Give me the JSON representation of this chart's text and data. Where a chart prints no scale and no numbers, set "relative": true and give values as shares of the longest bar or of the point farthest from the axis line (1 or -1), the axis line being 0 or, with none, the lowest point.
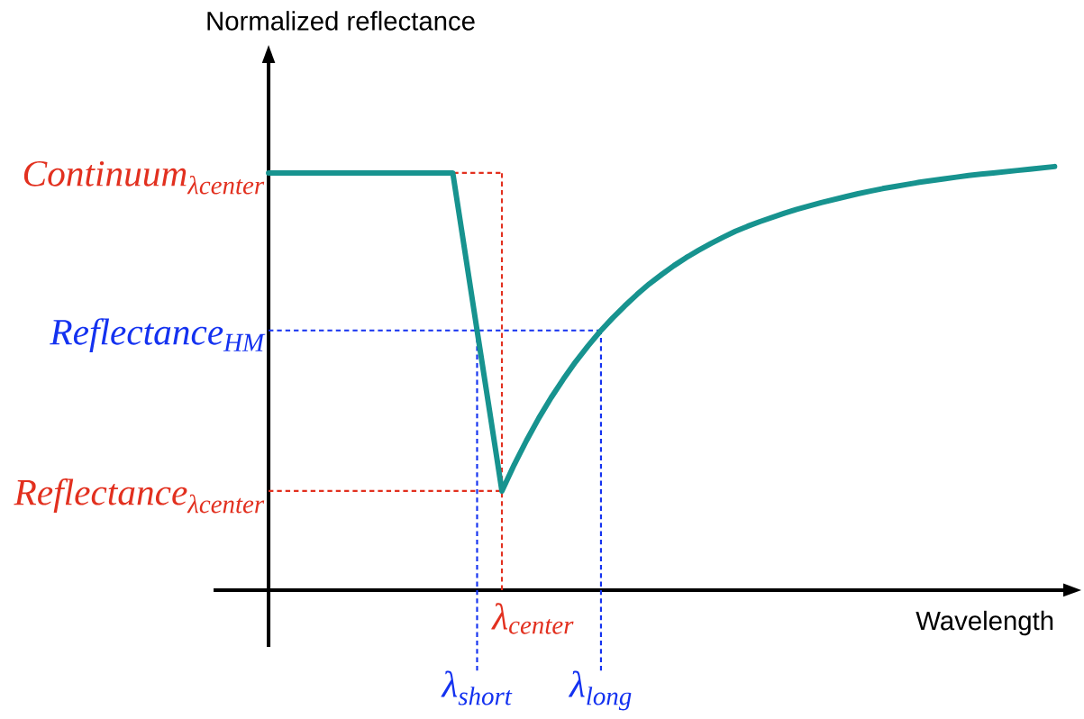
{
  "chart_data": {
    "type": "line",
    "relative": true,
    "xlabel": "Wavelength",
    "categories": [
      null,
      null,
      null,
      null,
      null,
      null,
      null,
      null,
      null,
      null,
      null,
      null,
      null,
      null,
      null,
      null,
      null,
      null,
      null,
      null,
      null,
      null,
      null,
      null,
      null,
      null,
      null,
      null,
      null,
      null,
      null,
      null,
      null,
      null,
      null,
      null,
      null,
      null,
      null,
      null,
      null,
      null,
      null,
      null,
      null,
      null,
      null,
      null,
      null,
      null,
      null,
      null,
      null,
      null,
      null,
      null,
      null,
      null,
      null,
      null,
      null,
      null,
      null,
      null,
      null
    ],
    "series": [
      {
        "color": "#17938f",
        "values": [
          0.985,
          0.985,
          0.985,
          0.985,
          0.985,
          0.985,
          0.985,
          0.985,
          0.985,
          0.985,
          0.985,
          0.985,
          0.985,
          0.985,
          0.985,
          0.985,
          0.797,
          0.609,
          0.422,
          0.234,
          0.296,
          0.353,
          0.406,
          0.454,
          0.498,
          0.539,
          0.576,
          0.611,
          0.642,
          0.671,
          0.698,
          0.723,
          0.745,
          0.766,
          0.785,
          0.802,
          0.818,
          0.833,
          0.847,
          0.859,
          0.87,
          0.88,
          0.89,
          0.899,
          0.907,
          0.915,
          0.922,
          0.929,
          0.936,
          0.942,
          0.948,
          0.953,
          0.958,
          0.963,
          0.967,
          0.971,
          0.975,
          0.979,
          0.982,
          0.985,
          0.988,
          0.991,
          0.994,
          0.997,
          1
        ]
      }
    ],
    "ref_lines": [
      {
        "axis": "y",
        "value": 0.985,
        "label": "Continuum$_{λcenter}$",
        "color": "#e2301f",
        "line_style": "dashed"
      },
      {
        "axis": "y",
        "value": 0.613,
        "label": "Reflectance$_{HM}$",
        "color": "#1432f0",
        "line_style": "dashed"
      },
      {
        "axis": "y",
        "value": 0.234,
        "label": "Reflectance$_{λcenter}$",
        "color": "#e2301f",
        "line_style": "dashed"
      }
    ],
    "annotations": [
      "λ$_{center}$",
      "λ$_{short}$",
      "λ$_{long}$",
      "Normalized reflectance"
    ]
  }
}
